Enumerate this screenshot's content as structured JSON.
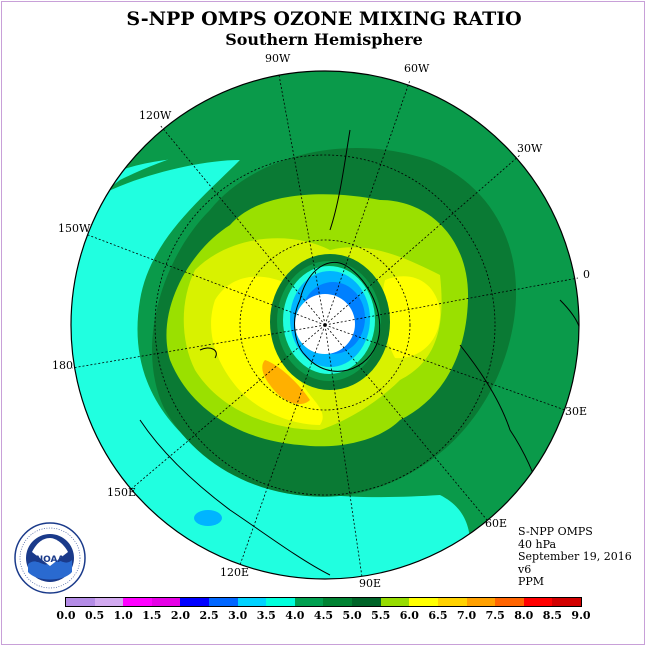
{
  "title": "S-NPP OMPS OZONE MIXING RATIO",
  "subtitle": "Southern Hemisphere",
  "longitude_labels": {
    "w90": "90W",
    "w60": "60W",
    "w30": "30W",
    "w120": "120W",
    "w150": "150W",
    "e0": "0",
    "lon180": "180",
    "e30": "30E",
    "e60": "60E",
    "e90": "90E",
    "e120": "120E",
    "e150": "150E"
  },
  "info": {
    "instrument": "S-NPP OMPS",
    "level": "40 hPa",
    "date": "September 19, 2016",
    "version": "v6",
    "units": "PPM"
  },
  "logo": {
    "text": "NOAA",
    "ring_text": "NATIONAL OCEANIC AND ATMOSPHERIC ADMINISTRATION · U.S. DEPARTMENT OF COMMERCE"
  },
  "colorbar": {
    "ticks": [
      "0.0",
      "0.5",
      "1.0",
      "1.5",
      "2.0",
      "2.5",
      "3.0",
      "3.5",
      "4.0",
      "4.5",
      "5.0",
      "5.5",
      "6.0",
      "6.5",
      "7.0",
      "7.5",
      "8.0",
      "8.5",
      "9.0"
    ],
    "colors": [
      "#b48ce6",
      "#d2aaf0",
      "#ff00ff",
      "#e600e6",
      "#0000ff",
      "#0066ff",
      "#00a0ff",
      "#00d2ff",
      "#00ffdc",
      "#00a050",
      "#008232",
      "#006428",
      "#96dc00",
      "#d2f000",
      "#ffff00",
      "#ffd200",
      "#ffa000",
      "#ff6400",
      "#ff0000",
      "#d20000",
      "#8c5a3c"
    ]
  },
  "palette": {
    "ocean_cyan": "#20ffe0",
    "green": "#0a9a4a",
    "dark_green": "#0a7a34",
    "lime": "#9ae000",
    "yellow_green": "#d8f200",
    "yellow": "#ffff00",
    "orange": "#ffb000",
    "light_blue": "#00b4ff",
    "blue": "#0080ff",
    "hole": "#ffffff"
  }
}
